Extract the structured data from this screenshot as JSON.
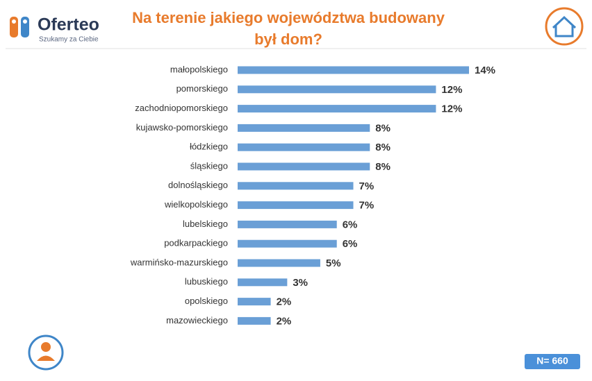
{
  "brand": {
    "name": "Oferteo",
    "tagline": "Szukamy za Ciebie"
  },
  "sample": "N= 660",
  "chart_data": {
    "type": "hbar",
    "title": [
      "Na terenie jakiego województwa budowany",
      "był dom?"
    ],
    "categories": [
      "małopolskiego",
      "pomorskiego",
      "zachodniopomorskiego",
      "kujawsko-pomorskiego",
      "łódzkiego",
      "śląskiego",
      "dolnośląskiego",
      "wielkopolskiego",
      "lubelskiego",
      "podkarpackiego",
      "warmińsko-mazurskiego",
      "lubuskiego",
      "opolskiego",
      "mazowieckiego"
    ],
    "values": [
      14,
      12,
      12,
      8,
      8,
      8,
      7,
      7,
      6,
      6,
      5,
      3,
      2,
      2
    ],
    "value_labels": [
      "14%",
      "12%",
      "12%",
      "8%",
      "8%",
      "8%",
      "7%",
      "7%",
      "6%",
      "6%",
      "5%",
      "3%",
      "2%",
      "2%"
    ],
    "color": "#6a9fd6"
  }
}
